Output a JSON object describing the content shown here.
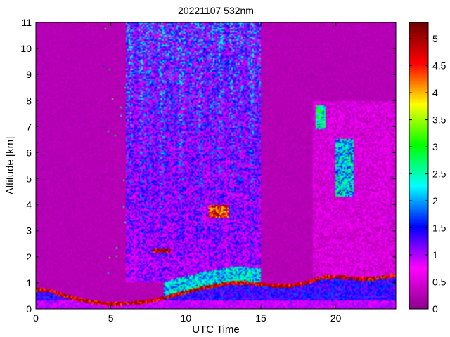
{
  "chart_data": {
    "type": "heatmap",
    "title": "20221107 532nm",
    "xlabel": "UTC Time",
    "ylabel": "Altitude [km]",
    "xlim": [
      0,
      24
    ],
    "ylim": [
      0,
      11
    ],
    "x_ticks": [
      0,
      5,
      10,
      15,
      20
    ],
    "y_ticks": [
      0,
      1,
      2,
      3,
      4,
      5,
      6,
      7,
      8,
      9,
      10,
      11
    ],
    "colorbar": {
      "range": [
        0,
        5.3
      ],
      "ticks": [
        0,
        0.5,
        1,
        1.5,
        2,
        2.5,
        3,
        3.5,
        4,
        4.5,
        5
      ],
      "colors": [
        "#8b008b",
        "#ff00ff",
        "#0000ff",
        "#00ffff",
        "#00ff00",
        "#ffff00",
        "#ff0000",
        "#6b0000"
      ]
    },
    "background_value": 0.2,
    "features": [
      {
        "name": "boundary-layer-top",
        "x": [
          0,
          1,
          2,
          3,
          4,
          5,
          6,
          7,
          7.5,
          8,
          9,
          10,
          11,
          12,
          13,
          14,
          15,
          16,
          17,
          18,
          19,
          20,
          21,
          22,
          23,
          24
        ],
        "y": [
          0.75,
          0.7,
          0.5,
          0.35,
          0.25,
          0.2,
          0.22,
          0.25,
          0.3,
          0.35,
          0.5,
          0.65,
          0.8,
          0.9,
          1.0,
          1.0,
          0.95,
          0.9,
          0.9,
          1.0,
          1.2,
          1.25,
          1.2,
          1.15,
          1.2,
          1.3
        ],
        "value": 5.0
      },
      {
        "name": "cloud-2.2km",
        "x": [
          7.8,
          9.0
        ],
        "y": [
          2.15,
          2.3
        ],
        "value": 5.0
      },
      {
        "name": "cloud-3.8km",
        "x": [
          11.5,
          12.8
        ],
        "y": [
          3.5,
          4.0
        ],
        "value": 4.5
      },
      {
        "name": "cloud-7.3km",
        "x": [
          18.7,
          19.3
        ],
        "y": [
          6.9,
          7.8
        ],
        "value": 2.5
      },
      {
        "name": "cloud-5km",
        "x": [
          20.0,
          21.2
        ],
        "y": [
          4.3,
          6.5
        ],
        "value": 2.2
      },
      {
        "name": "aerosol-column",
        "x": [
          6.0,
          15.0
        ],
        "y": [
          1.0,
          11.0
        ],
        "value": 1.6
      },
      {
        "name": "aerosol-column-2",
        "x": [
          18.5,
          24.0
        ],
        "y": [
          1.0,
          8.0
        ],
        "value": 0.8
      }
    ]
  }
}
